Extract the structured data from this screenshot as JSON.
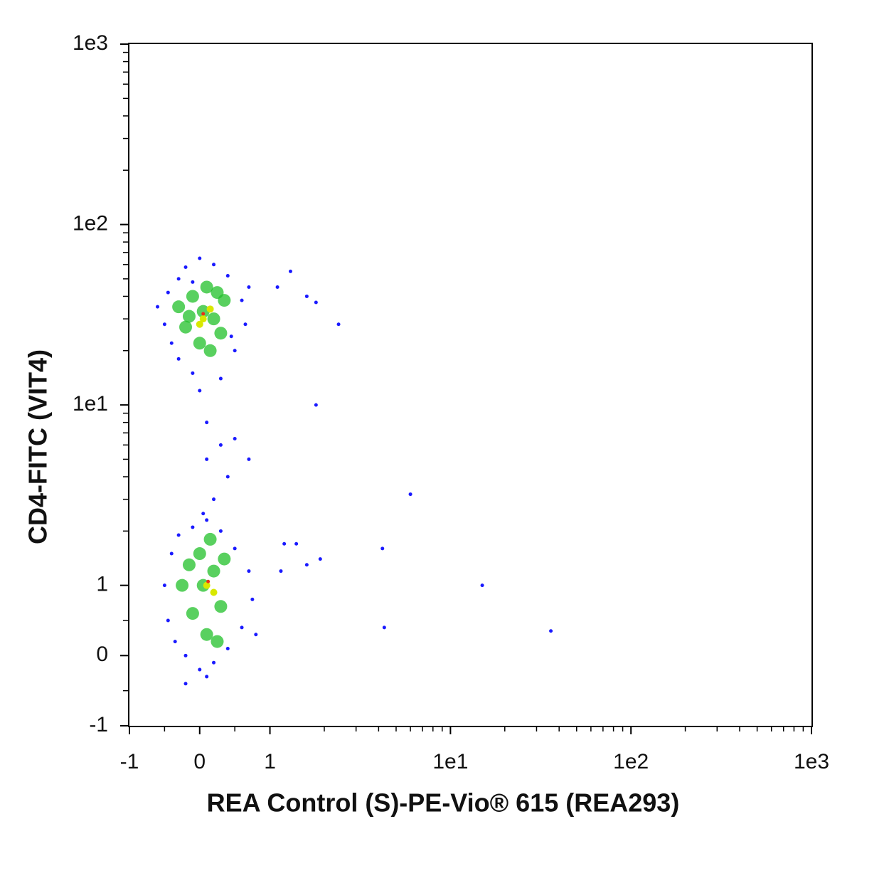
{
  "chart_data": {
    "type": "scatter",
    "x_label": "REA Control (S)-PE-Vio® 615 (REA293)",
    "y_label": "CD4-FITC (VIT4)",
    "xscale": "biexponential",
    "yscale": "biexponential",
    "xlim": [
      -1,
      1000
    ],
    "ylim": [
      -1,
      1000
    ],
    "xticks": [
      -1,
      0,
      1,
      {
        "value": 10,
        "label": "1e1"
      },
      {
        "value": 100,
        "label": "1e2"
      },
      {
        "value": 1000,
        "label": "1e3"
      }
    ],
    "yticks": [
      -1,
      0,
      1,
      {
        "value": 10,
        "label": "1e1"
      },
      {
        "value": 100,
        "label": "1e2"
      },
      {
        "value": 1000,
        "label": "1e3"
      }
    ],
    "xminorticks": [
      -0.5,
      0.5,
      2,
      3,
      4,
      5,
      6,
      7,
      8,
      9,
      20,
      30,
      40,
      50,
      60,
      70,
      80,
      90,
      200,
      300,
      400,
      500,
      600,
      700,
      800,
      900
    ],
    "yminorticks": [
      -0.5,
      0.5,
      2,
      3,
      4,
      5,
      6,
      7,
      8,
      9,
      20,
      30,
      40,
      50,
      60,
      70,
      80,
      90,
      200,
      300,
      400,
      500,
      600,
      700,
      800,
      900
    ],
    "series": [
      {
        "color": "#1a1aff",
        "marker_size": 2.5,
        "x": [
          -0.6,
          -0.5,
          -0.45,
          -0.4,
          -0.3,
          -0.3,
          -0.2,
          -0.1,
          0,
          0,
          0.1,
          0.2,
          0.3,
          0.4,
          0.5,
          0.6,
          0.65,
          0.7,
          0.3,
          0.1,
          0.4,
          0.2,
          0.05,
          0.5,
          0.7,
          -0.1,
          0.45,
          -0.5,
          -0.45,
          -0.4,
          -0.35,
          -0.3,
          -0.2,
          -0.1,
          0,
          0.1,
          0.2,
          0.3,
          0.4,
          0.5,
          0.6,
          0.7,
          0.75,
          -0.2,
          0.1,
          0.8,
          1.2,
          1.4,
          1.9,
          1.6,
          4.2,
          1.15,
          15,
          4.3,
          36,
          6,
          1.8,
          2.4,
          1.8,
          1.3,
          1.1,
          1.6
        ],
        "y": [
          35,
          28,
          42,
          22,
          50,
          18,
          58,
          15,
          65,
          12,
          8,
          60,
          14,
          52,
          20,
          38,
          28,
          45,
          6,
          5,
          4,
          3,
          2.5,
          6.5,
          5,
          48,
          24,
          1,
          0.5,
          1.5,
          0.2,
          1.9,
          0,
          2.1,
          -0.2,
          2.3,
          -0.1,
          2,
          0.1,
          1.6,
          0.4,
          1.2,
          0.8,
          -0.4,
          -0.3,
          0.3,
          1.7,
          1.7,
          1.4,
          1.3,
          1.6,
          1.2,
          1,
          0.4,
          0.35,
          3.2,
          10,
          28,
          37,
          55,
          45,
          40
        ]
      },
      {
        "color": "#22c02a",
        "marker_size": 9,
        "x": [
          -0.3,
          -0.2,
          -0.1,
          0,
          0.1,
          0.2,
          0.3,
          0.35,
          0.05,
          -0.15,
          0.25,
          0.15,
          -0.25,
          -0.1,
          0,
          0.1,
          0.2,
          0.3,
          0.35,
          0.15,
          -0.15,
          0.25,
          0.05
        ],
        "y": [
          35,
          27,
          40,
          22,
          45,
          30,
          25,
          38,
          33,
          31,
          42,
          20,
          1,
          0.6,
          1.5,
          0.3,
          1.2,
          0.7,
          1.4,
          1.8,
          1.3,
          0.2,
          1
        ]
      },
      {
        "color": "#d8e800",
        "marker_size": 5,
        "x": [
          0.05,
          0.15,
          0.1,
          0.2,
          0
        ],
        "y": [
          30,
          34,
          1,
          0.9,
          28
        ]
      },
      {
        "color": "#e8301a",
        "marker_size": 2.5,
        "x": [
          0.05,
          0.12
        ],
        "y": [
          32,
          1.05
        ]
      }
    ]
  }
}
